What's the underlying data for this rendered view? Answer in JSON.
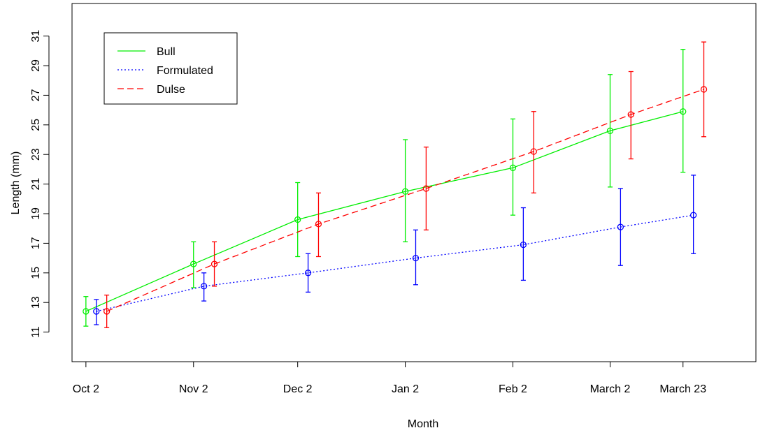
{
  "chart_data": {
    "type": "line",
    "xlabel": "Month",
    "ylabel": "Length (mm)",
    "x_categories": [
      "Oct 2",
      "Nov 2",
      "Dec 2",
      "Jan 2",
      "Feb 2",
      "March 2",
      "March 23"
    ],
    "x_days": [
      0,
      31,
      61,
      92,
      123,
      151,
      172
    ],
    "xlim": [
      -4,
      193
    ],
    "ylim": [
      9,
      33.2
    ],
    "y_ticks": [
      11,
      13,
      15,
      17,
      19,
      21,
      23,
      25,
      27,
      29,
      31
    ],
    "grid": false,
    "legend_position": "top-left",
    "series": [
      {
        "name": "Bull",
        "color": "#00ee00",
        "line_style": "solid",
        "x_offset_days": 0,
        "values": [
          12.4,
          15.6,
          18.6,
          20.5,
          22.1,
          24.6,
          25.9
        ],
        "error_low": [
          11.4,
          14.0,
          16.1,
          17.1,
          18.9,
          20.8,
          21.8
        ],
        "error_high": [
          13.4,
          17.1,
          21.1,
          24.0,
          25.4,
          28.4,
          30.1
        ]
      },
      {
        "name": "Formulated",
        "color": "#0000ff",
        "line_style": "dotted",
        "x_offset_days": 3,
        "values": [
          12.4,
          14.1,
          15.0,
          16.0,
          16.9,
          18.1,
          18.9
        ],
        "error_low": [
          11.5,
          13.1,
          13.7,
          14.2,
          14.5,
          15.5,
          16.3
        ],
        "error_high": [
          13.2,
          15.0,
          16.3,
          17.9,
          19.4,
          20.7,
          21.6
        ]
      },
      {
        "name": "Dulse",
        "color": "#ff0000",
        "line_style": "dashed",
        "x_offset_days": 6,
        "values": [
          12.4,
          15.6,
          18.3,
          20.7,
          23.2,
          25.7,
          27.4
        ],
        "error_low": [
          11.3,
          14.1,
          16.1,
          17.9,
          20.4,
          22.7,
          24.2
        ],
        "error_high": [
          13.5,
          17.1,
          20.4,
          23.5,
          25.9,
          28.6,
          30.6
        ]
      }
    ]
  }
}
